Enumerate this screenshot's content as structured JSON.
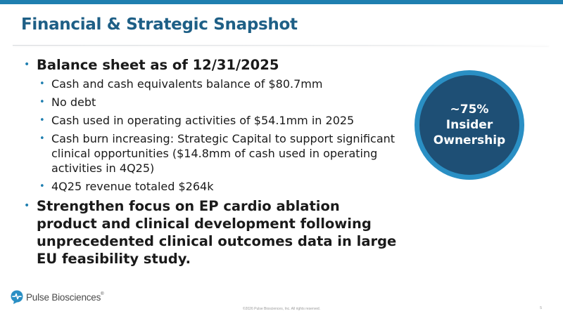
{
  "slide": {
    "title": "Financial & Strategic Snapshot",
    "sections": [
      {
        "heading": "Balance sheet as of 12/31/2025",
        "bullets": [
          "Cash and cash equivalents balance of $80.7mm",
          "No debt",
          "Cash used in operating activities of $54.1mm in 2025",
          "Cash burn increasing: Strategic Capital to support significant clinical opportunities ($14.8mm of cash used in operating activities in 4Q25)",
          "4Q25 revenue totaled $264k"
        ]
      },
      {
        "heading": "Strengthen focus on EP cardio ablation product and clinical development following unprecedented clinical outcomes data in large EU feasibility study."
      }
    ],
    "callout": {
      "line1": "~75%",
      "line2": "Insider",
      "line3": "Ownership"
    },
    "logo": {
      "name": "Pulse Biosciences",
      "trademark": "®",
      "icon": "pulse-biosciences-logo-icon"
    },
    "footer": "©2026 Pulse Biosciences, Inc. All rights reserved.",
    "page_number": "5",
    "colors": {
      "accent": "#1f7fb0",
      "title": "#1e5f86",
      "circle_fill": "#1e4f75",
      "circle_ring": "#2a8fc4"
    }
  }
}
